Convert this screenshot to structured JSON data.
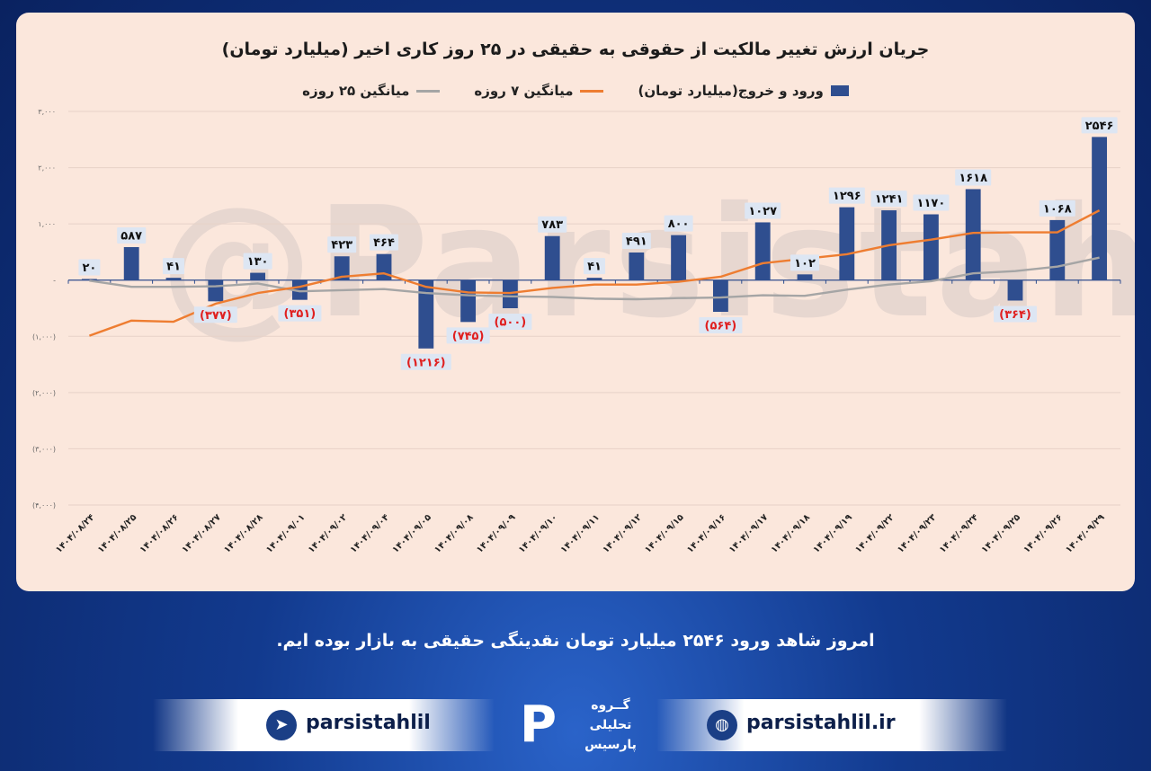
{
  "title": "جریان ارزش تغییر مالکیت از حقوقی به حقیقی در ۲۵ روز کاری اخیر (میلیارد تومان)",
  "legend": {
    "bars": "ورود و خروج(میلیارد تومان)",
    "ma7": "میانگین ۷ روزه",
    "ma25": "میانگین ۲۵ روزه"
  },
  "watermark": "@Parsistahlil",
  "caption": "امروز شاهد ورود ۲۵۴۶ میلیارد تومان نقدینگی حقیقی به بازار بوده ایم.",
  "footer": {
    "telegram_handle": "parsistahlil",
    "website": "parsistahlil.ir",
    "telegram_icon": "telegram-icon",
    "globe_icon": "globe-icon",
    "logo_lines": [
      "گــروه",
      "تحلیلی",
      "پارسیس"
    ]
  },
  "colors": {
    "bar": "#2f4e8f",
    "ma7": "#ee7d31",
    "ma25": "#a5a5a5",
    "negative_label": "#e02020"
  },
  "chart_data": {
    "type": "bar",
    "title": "جریان ارزش تغییر مالکیت از حقوقی به حقیقی در ۲۵ روز کاری اخیر (میلیارد تومان)",
    "categories": [
      "۱۴۰۴/۰۸/۲۴",
      "۱۴۰۴/۰۸/۲۵",
      "۱۴۰۴/۰۸/۲۶",
      "۱۴۰۴/۰۸/۲۷",
      "۱۴۰۴/۰۸/۲۸",
      "۱۴۰۴/۰۹/۰۱",
      "۱۴۰۴/۰۹/۰۲",
      "۱۴۰۴/۰۹/۰۴",
      "۱۴۰۴/۰۹/۰۵",
      "۱۴۰۴/۰۹/۰۸",
      "۱۴۰۴/۰۹/۰۹",
      "۱۴۰۴/۰۹/۱۰",
      "۱۴۰۴/۰۹/۱۱",
      "۱۴۰۴/۰۹/۱۲",
      "۱۴۰۴/۰۹/۱۵",
      "۱۴۰۴/۰۹/۱۶",
      "۱۴۰۴/۰۹/۱۷",
      "۱۴۰۴/۰۹/۱۸",
      "۱۴۰۴/۰۹/۱۹",
      "۱۴۰۴/۰۹/۲۲",
      "۱۴۰۴/۰۹/۲۳",
      "۱۴۰۴/۰۹/۲۴",
      "۱۴۰۴/۰۹/۲۵",
      "۱۴۰۴/۰۹/۲۶",
      "۱۴۰۴/۰۹/۲۹"
    ],
    "series": [
      {
        "name": "ورود و خروج(میلیارد تومان)",
        "type": "bar",
        "values": [
          20,
          587,
          41,
          -377,
          130,
          -351,
          423,
          464,
          -1216,
          -745,
          -500,
          783,
          41,
          491,
          800,
          -564,
          1027,
          102,
          1296,
          1241,
          1170,
          1618,
          -364,
          1068,
          2546
        ],
        "labels": [
          "۲۰",
          "۵۸۷",
          "۴۱",
          "(۳۷۷)",
          "۱۳۰",
          "(۳۵۱)",
          "۴۲۳",
          "۴۶۴",
          "(۱۲۱۶)",
          "(۷۴۵)",
          "(۵۰۰)",
          "۷۸۳",
          "۴۱",
          "۴۹۱",
          "۸۰۰",
          "(۵۶۴)",
          "۱۰۲۷",
          "۱۰۲",
          "۱۲۹۶",
          "۱۲۴۱",
          "۱۱۷۰",
          "۱۶۱۸",
          "(۳۶۴)",
          "۱۰۶۸",
          "۲۵۴۶"
        ]
      },
      {
        "name": "میانگین ۷ روزه",
        "type": "line",
        "values": [
          -990,
          -720,
          -740,
          -420,
          -230,
          -120,
          60,
          120,
          -120,
          -220,
          -230,
          -140,
          -80,
          -80,
          -30,
          60,
          300,
          380,
          460,
          620,
          720,
          840,
          850,
          850,
          1240
        ]
      },
      {
        "name": "میانگین ۲۵ روزه",
        "type": "line",
        "values": [
          -10,
          -120,
          -120,
          -110,
          -60,
          -200,
          -180,
          -160,
          -230,
          -270,
          -290,
          -300,
          -330,
          -340,
          -320,
          -310,
          -270,
          -280,
          -170,
          -80,
          -20,
          120,
          160,
          240,
          400
        ]
      }
    ],
    "ylim": [
      -4000,
      3000
    ],
    "yticks": [
      3000,
      2000,
      1000,
      0,
      -1000,
      -2000,
      -3000,
      -4000
    ],
    "ytick_labels": [
      "۳,۰۰۰",
      "۲,۰۰۰",
      "۱,۰۰۰",
      "-",
      "(۱,۰۰۰)",
      "(۲,۰۰۰)",
      "(۳,۰۰۰)",
      "(۴,۰۰۰)"
    ],
    "grid": true,
    "legend_position": "top"
  }
}
